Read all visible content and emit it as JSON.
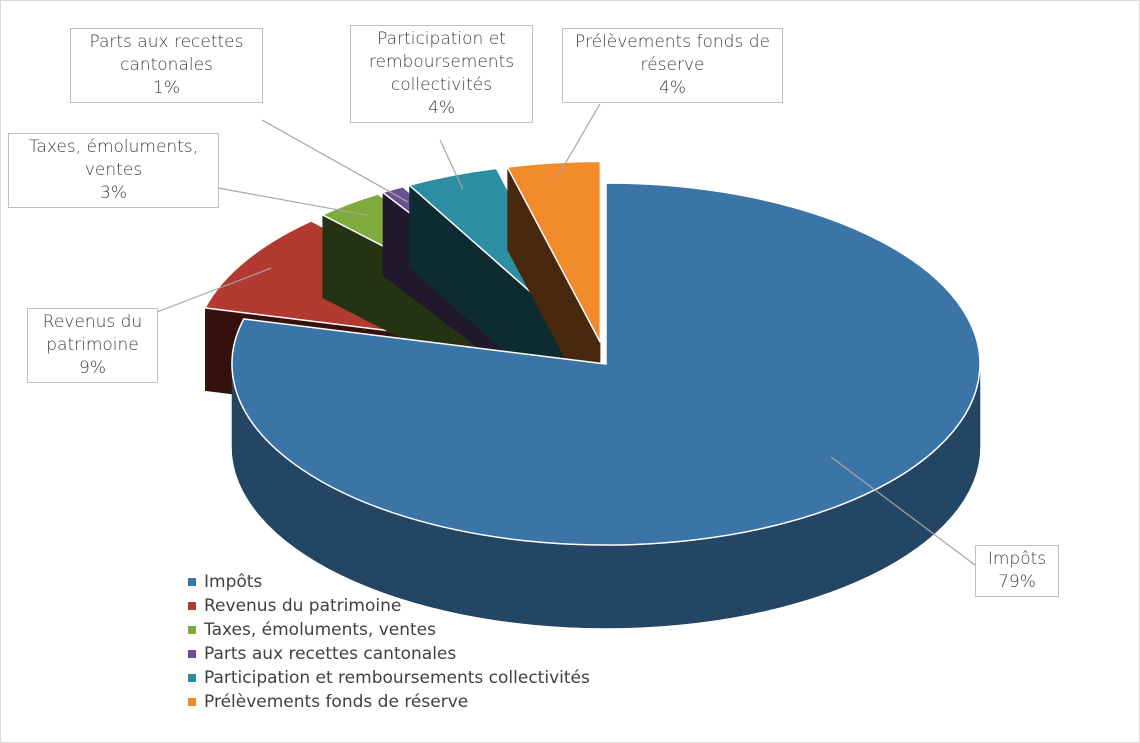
{
  "chart_data": {
    "type": "pie",
    "categories": [
      "Impôts",
      "Revenus du patrimoine",
      "Taxes, émoluments, ventes",
      "Parts aux recettes cantonales",
      "Participation et remboursements collectivités",
      "Prélèvements fonds de réserve"
    ],
    "values": [
      79,
      9,
      3,
      1,
      4,
      4
    ],
    "value_labels": [
      "79%",
      "9%",
      "3%",
      "1%",
      "4%",
      "4%"
    ],
    "colors": [
      "#3b74a6",
      "#b23a30",
      "#7eab3c",
      "#6b4f94",
      "#2b8ea3",
      "#f08a2a"
    ],
    "legend": "bottom-left"
  }
}
